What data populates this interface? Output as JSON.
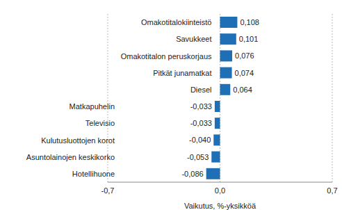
{
  "chart_data": {
    "type": "bar",
    "orientation": "horizontal",
    "categories": [
      "Omakotitalokiinteistö",
      "Savukkeet",
      "Omakotitalon peruskorjaus",
      "Pitkät junamatkat",
      "Diesel",
      "Matkapuhelin",
      "Televisio",
      "Kulutusluottojen korot",
      "Asuntolainojen keskikorko",
      "Hotellihuone"
    ],
    "values": [
      0.108,
      0.101,
      0.076,
      0.074,
      0.064,
      -0.033,
      -0.033,
      -0.04,
      -0.053,
      -0.086
    ],
    "value_labels": [
      "0,108",
      "0,101",
      "0,076",
      "0,074",
      "0,064",
      "-0,033",
      "-0,033",
      "-0,040",
      "-0,053",
      "-0,086"
    ],
    "color": "#1f6fb6",
    "xlabel": "Vaikutus, %-yksikköä",
    "xlim": [
      -0.7,
      0.7
    ],
    "xticks": [
      {
        "value": -0.7,
        "label": "-0,7"
      },
      {
        "value": 0,
        "label": "0,0"
      },
      {
        "value": 0.7,
        "label": "0,7"
      }
    ],
    "grid": true,
    "data_labels": true
  }
}
